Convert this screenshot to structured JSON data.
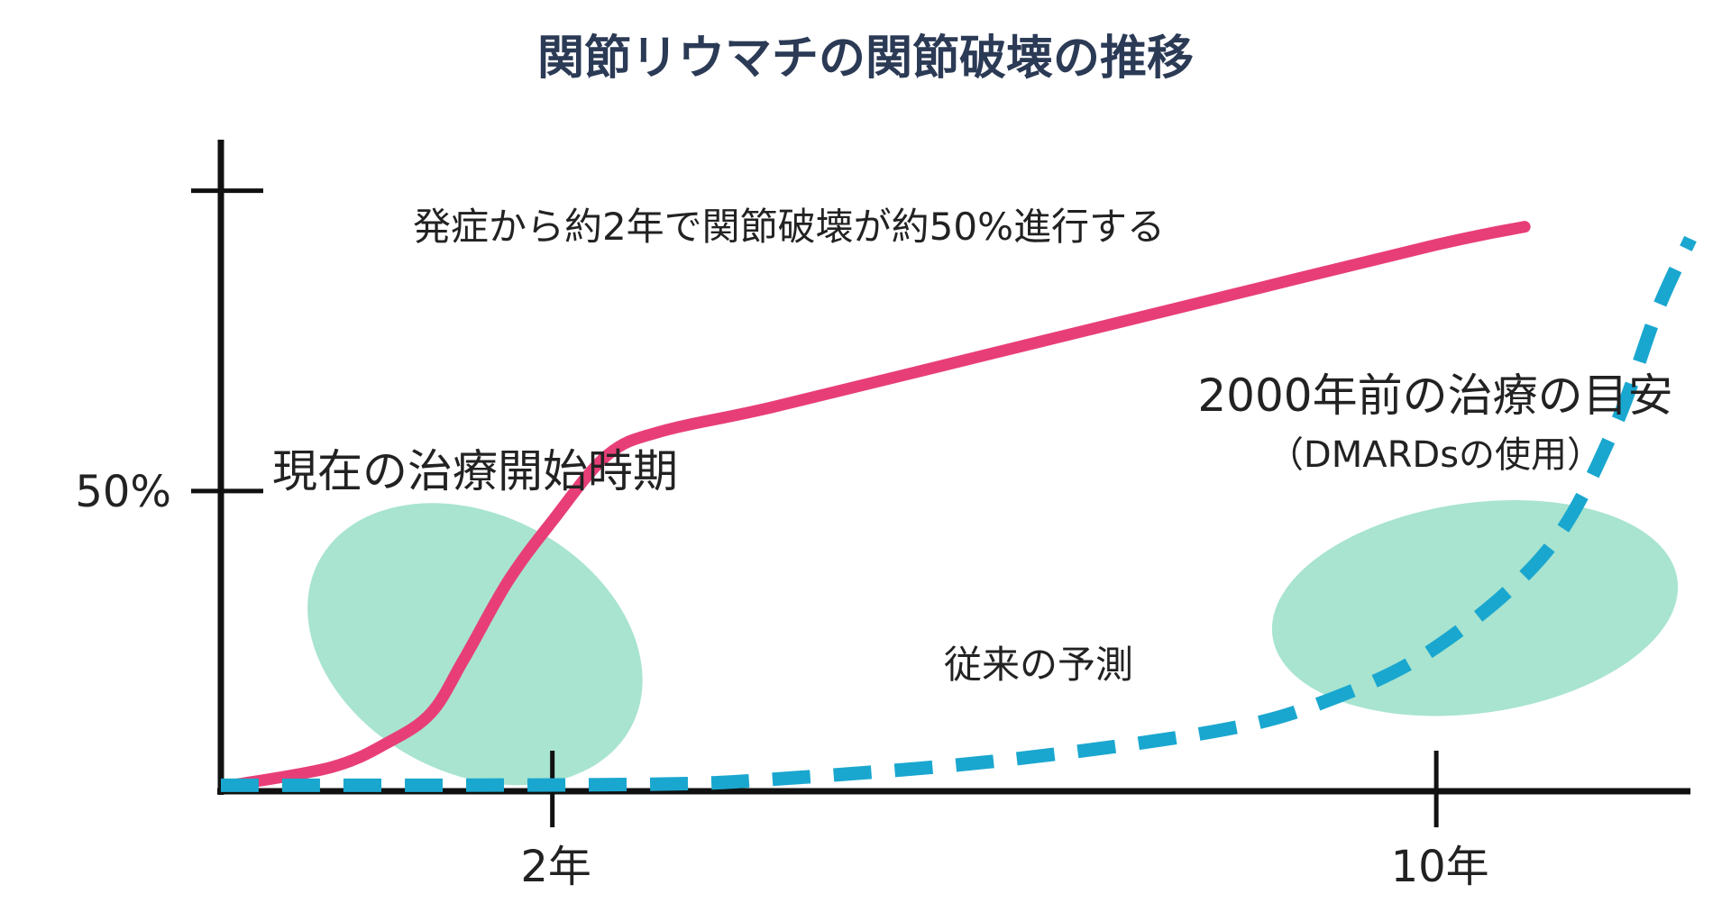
{
  "colors": {
    "background": "#ffffff",
    "title": "#2b3a55",
    "axis": "#111111",
    "actual_series": "#e83e78",
    "expected_series": "#1aa7cf",
    "highlight_zone": "#a8e4d0"
  },
  "chart_data": {
    "type": "line",
    "title": "関節リウマチの関節破壊の推移",
    "xlabel": "",
    "ylabel": "",
    "x_ticks": [
      {
        "value": 2,
        "label": "2年"
      },
      {
        "value": 10,
        "label": "10年"
      }
    ],
    "y_ticks": [
      {
        "value": 50,
        "label": "50%"
      },
      {
        "value": 100,
        "label": ""
      }
    ],
    "xlim": [
      -1,
      12.3
    ],
    "ylim": [
      0,
      107
    ],
    "grid": false,
    "legend": "none",
    "series": [
      {
        "style": "solid",
        "color": "#e83e78",
        "points": [
          [
            -0.9,
            1
          ],
          [
            0,
            4
          ],
          [
            0.5,
            8
          ],
          [
            0.9,
            13
          ],
          [
            1.2,
            22
          ],
          [
            1.6,
            35
          ],
          [
            2.0,
            45
          ],
          [
            2.5,
            56
          ],
          [
            3,
            60
          ],
          [
            4,
            64
          ],
          [
            6,
            73
          ],
          [
            8,
            82
          ],
          [
            10,
            91
          ],
          [
            10.8,
            94
          ]
        ]
      },
      {
        "style": "dashed",
        "color": "#1aa7cf",
        "points": [
          [
            -1,
            1
          ],
          [
            1,
            1
          ],
          [
            3,
            1.2
          ],
          [
            4,
            2
          ],
          [
            6,
            5
          ],
          [
            8,
            10
          ],
          [
            9,
            15
          ],
          [
            10,
            24
          ],
          [
            11,
            40
          ],
          [
            11.6,
            60
          ],
          [
            12,
            80
          ],
          [
            12.3,
            92
          ]
        ]
      }
    ],
    "regions": [
      {
        "label": "現在の治療開始時期",
        "x": [
          -0.3,
          2.9
        ],
        "y": [
          3,
          46
        ]
      },
      {
        "label": "2000年前の治療の目安",
        "sublabel": "（DMARDsの使用）",
        "x": [
          8.5,
          12.2
        ],
        "y": [
          13,
          48
        ]
      }
    ],
    "annotations": [
      {
        "id": "progress_note",
        "text": "発症から約2年で関節破壊が約50%進行する"
      },
      {
        "id": "expected_label",
        "text": "従来の予測"
      }
    ]
  }
}
